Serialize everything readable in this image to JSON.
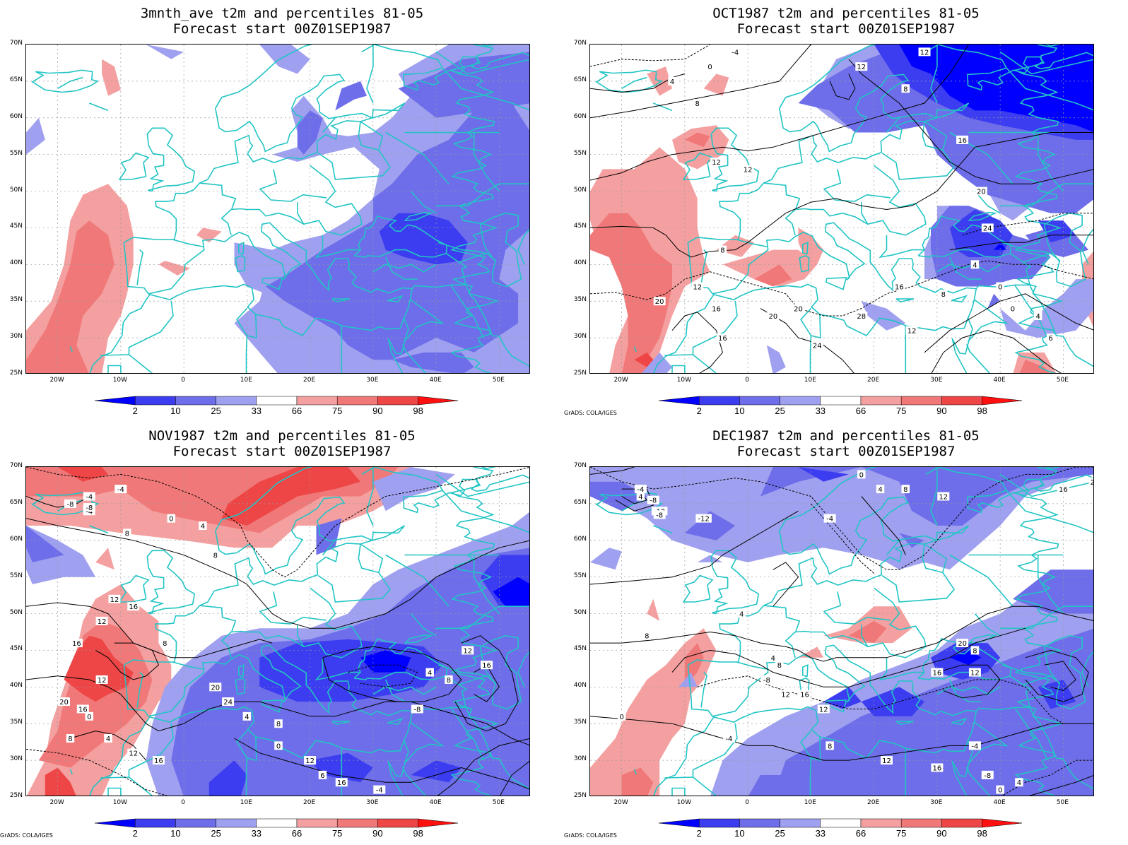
{
  "colors": {
    "p2": "#0000ff",
    "p10": "#3c3cf0",
    "p25": "#6e6eea",
    "p33": "#a0a0f0",
    "p66": "#f5a0a0",
    "p75": "#f07878",
    "p90": "#ee4646",
    "p98": "#ff1010",
    "coast": "#22c4c4",
    "contour": "#000000"
  },
  "lat_labels": [
    "70N",
    "65N",
    "60N",
    "55N",
    "50N",
    "45N",
    "40N",
    "35N",
    "30N",
    "25N"
  ],
  "lon_labels": [
    "20W",
    "10W",
    "0",
    "10E",
    "20E",
    "30E",
    "40E",
    "50E"
  ],
  "colorbar_labels": [
    "2",
    "10",
    "25",
    "33",
    "66",
    "75",
    "90",
    "98"
  ],
  "credit": "GrADS: COLA/IGES",
  "panels": [
    {
      "id": "3mnth",
      "title1": "3mnth_ave t2m and percentiles 81-05",
      "title2": "Forecast start 00Z01SEP1987",
      "show_credit": false,
      "contour_labels": []
    },
    {
      "id": "oct",
      "title1": "OCT1987 t2m and percentiles 81-05",
      "title2": "Forecast start 00Z01SEP1987",
      "show_credit": true,
      "contour_labels": [
        "-4",
        "0",
        "4",
        "8",
        "12",
        "12",
        "8",
        "12",
        "16",
        "20",
        "16",
        "20",
        "20",
        "24",
        "28",
        "16",
        "12",
        "8",
        "4",
        "0",
        "0",
        "4",
        "6",
        "12",
        "8",
        "12",
        "16",
        "20",
        "24"
      ]
    },
    {
      "id": "nov",
      "title1": "NOV1987 t2m and percentiles 81-05",
      "title2": "Forecast start 00Z01SEP1987",
      "show_credit": true,
      "contour_labels": [
        "-4",
        "-8",
        "-4",
        "-8",
        "-4",
        "0",
        "4",
        "8",
        "8",
        "12",
        "16",
        "8",
        "12",
        "16",
        "12",
        "20",
        "16",
        "0",
        "4",
        "8",
        "12",
        "16",
        "20",
        "24",
        "4",
        "8",
        "0",
        "12",
        "6",
        "16",
        "-4",
        "-8",
        "4",
        "8",
        "12",
        "16"
      ]
    },
    {
      "id": "dec",
      "title1": "DEC1987 t2m and percentiles 81-05",
      "title2": "Forecast start 00Z01SEP1987",
      "show_credit": true,
      "contour_labels": [
        "-4",
        "4",
        "-8",
        "-12",
        "-8",
        "-12",
        "-4",
        "0",
        "4",
        "8",
        "12",
        "16",
        "20",
        "4",
        "8",
        "0",
        "-4",
        "-8",
        "4",
        "8",
        "12",
        "16",
        "12",
        "8",
        "12",
        "16",
        "-4",
        "-8",
        "0",
        "4",
        "8",
        "12",
        "16",
        "20"
      ]
    }
  ]
}
